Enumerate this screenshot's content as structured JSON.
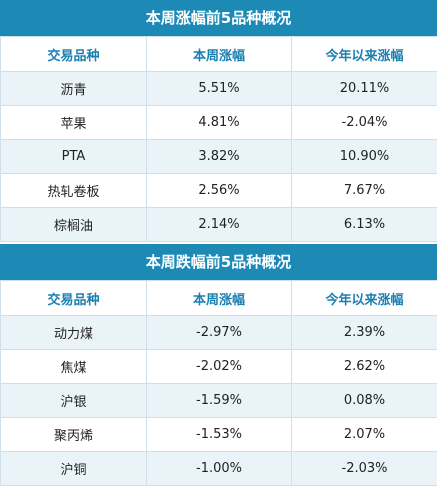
{
  "gainers": {
    "title": "本周涨幅前5品种概况",
    "headers": [
      "交易品种",
      "本周涨幅",
      "今年以来涨幅"
    ],
    "rows": [
      [
        "沥青",
        "5.51%",
        "20.11%"
      ],
      [
        "苹果",
        "4.81%",
        "-2.04%"
      ],
      [
        "PTA",
        "3.82%",
        "10.90%"
      ],
      [
        "热轧卷板",
        "2.56%",
        "7.67%"
      ],
      [
        "棕榈油",
        "2.14%",
        "6.13%"
      ]
    ]
  },
  "losers": {
    "title": "本周跌幅前5品种概况",
    "headers": [
      "交易品种",
      "本周涨幅",
      "今年以来涨幅"
    ],
    "rows": [
      [
        "动力煤",
        "-2.97%",
        "2.39%"
      ],
      [
        "焦煤",
        "-2.02%",
        "2.62%"
      ],
      [
        "沪银",
        "-1.59%",
        "0.08%"
      ],
      [
        "聚丙烯",
        "-1.53%",
        "2.07%"
      ],
      [
        "沪铜",
        "-1.00%",
        "-2.03%"
      ]
    ]
  },
  "colors": {
    "banner": "#1d8ab6",
    "header_text": "#1a7fb2",
    "stripe": "#e9f3f8"
  }
}
